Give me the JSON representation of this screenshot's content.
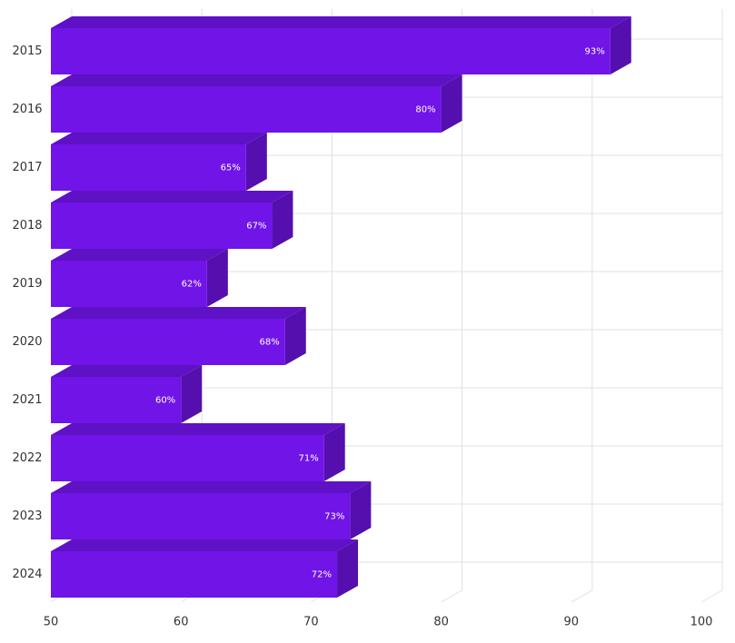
{
  "chart_data": {
    "type": "bar3d",
    "orientation": "horizontal",
    "categories": [
      "2015",
      "2016",
      "2017",
      "2018",
      "2019",
      "2020",
      "2021",
      "2022",
      "2023",
      "2024"
    ],
    "values": [
      93,
      80,
      65,
      67,
      62,
      68,
      60,
      71,
      73,
      72
    ],
    "value_labels": [
      "93%",
      "80%",
      "65%",
      "67%",
      "62%",
      "68%",
      "60%",
      "71%",
      "73%",
      "72%"
    ],
    "color": "#7014e8",
    "xlim": [
      50,
      100
    ],
    "xticks": [
      50,
      60,
      70,
      80,
      90,
      100
    ],
    "grid": true
  }
}
